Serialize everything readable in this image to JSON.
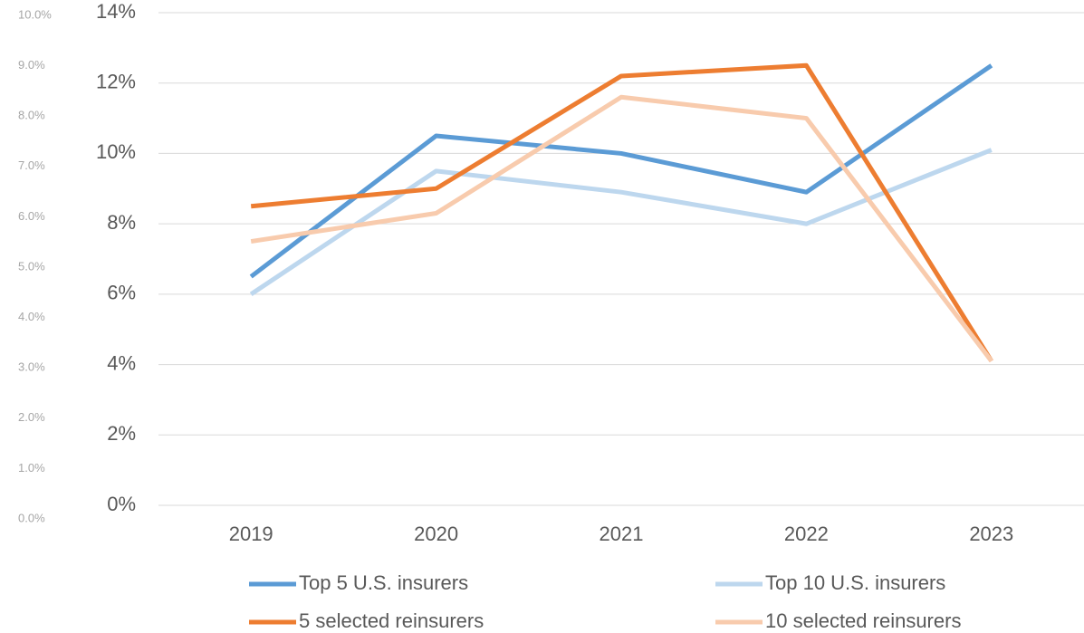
{
  "chart_data": {
    "type": "line",
    "categories": [
      "2019",
      "2020",
      "2021",
      "2022",
      "2023"
    ],
    "series": [
      {
        "name": "Top 5 U.S. insurers",
        "color": "#5b9bd5",
        "values": [
          6.5,
          10.5,
          10.0,
          8.9,
          12.5
        ]
      },
      {
        "name": "Top 10 U.S. insurers",
        "color": "#bdd7ee",
        "values": [
          6.0,
          9.5,
          8.9,
          8.0,
          10.1
        ]
      },
      {
        "name": "5 selected reinsurers",
        "color": "#ed7d31",
        "values": [
          8.5,
          9.0,
          12.2,
          12.5,
          4.1
        ]
      },
      {
        "name": "10 selected reinsurers",
        "color": "#f8cbad",
        "values": [
          7.5,
          8.3,
          11.6,
          11.0,
          4.1
        ]
      }
    ],
    "ylim": [
      0,
      14
    ],
    "yticks": [
      {
        "value": 0,
        "label": "0%"
      },
      {
        "value": 2,
        "label": "2%"
      },
      {
        "value": 4,
        "label": "4%"
      },
      {
        "value": 6,
        "label": "6%"
      },
      {
        "value": 8,
        "label": "8%"
      },
      {
        "value": 10,
        "label": "10%"
      },
      {
        "value": 12,
        "label": "12%"
      },
      {
        "value": 14,
        "label": "14%"
      }
    ],
    "y2lim": [
      0,
      10
    ],
    "y2ticks": [
      {
        "value": 0,
        "label": "0.0%"
      },
      {
        "value": 1,
        "label": "1.0%"
      },
      {
        "value": 2,
        "label": "2.0%"
      },
      {
        "value": 3,
        "label": "3.0%"
      },
      {
        "value": 4,
        "label": "4.0%"
      },
      {
        "value": 5,
        "label": "5.0%"
      },
      {
        "value": 6,
        "label": "6.0%"
      },
      {
        "value": 7,
        "label": "7.0%"
      },
      {
        "value": 8,
        "label": "8.0%"
      },
      {
        "value": 9,
        "label": "9.0%"
      },
      {
        "value": 10,
        "label": "10.0%"
      }
    ],
    "grid": true,
    "legend": "bottom"
  }
}
